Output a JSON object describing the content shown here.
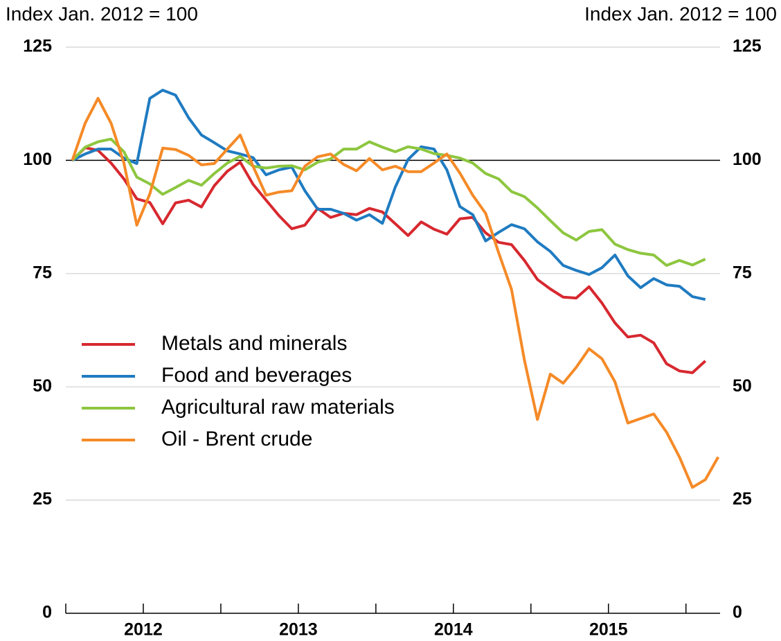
{
  "chart_data": {
    "type": "line",
    "y_label": "Index Jan. 2012 = 100",
    "y2_label": "Index Jan. 2012 = 100",
    "x": [
      2012.042,
      2012.125,
      2012.208,
      2012.292,
      2012.375,
      2012.458,
      2012.542,
      2012.625,
      2012.708,
      2012.792,
      2012.875,
      2012.958,
      2013.042,
      2013.125,
      2013.208,
      2013.292,
      2013.375,
      2013.458,
      2013.542,
      2013.625,
      2013.708,
      2013.792,
      2013.875,
      2013.958,
      2014.042,
      2014.125,
      2014.208,
      2014.292,
      2014.375,
      2014.458,
      2014.542,
      2014.625,
      2014.708,
      2014.792,
      2014.875,
      2014.958,
      2015.042,
      2015.125,
      2015.208,
      2015.292,
      2015.375,
      2015.458,
      2015.542,
      2015.625,
      2015.708,
      2015.792,
      2015.875,
      2015.958,
      2016.042,
      2016.125,
      2016.208
    ],
    "series": [
      {
        "name": "Metals and minerals",
        "color": "#d7282f",
        "values": [
          100,
          102.8,
          102.2,
          99.4,
          95.9,
          91.5,
          90.7,
          86.0,
          90.6,
          91.2,
          89.7,
          94.4,
          97.6,
          99.6,
          94.7,
          91.2,
          87.8,
          84.9,
          85.7,
          89.4,
          87.4,
          88.3,
          88.0,
          89.4,
          88.6,
          86.0,
          83.4,
          86.4,
          84.8,
          83.7,
          87.1,
          87.4,
          84.0,
          81.9,
          81.4,
          77.9,
          73.7,
          71.6,
          69.8,
          69.6,
          72.1,
          68.5,
          64.1,
          61.0,
          61.4,
          59.7,
          55.1,
          53.5,
          53.1,
          55.7,
          null
        ]
      },
      {
        "name": "Food and beverages",
        "color": "#1f7bc1",
        "values": [
          100,
          101.4,
          102.5,
          102.5,
          100.5,
          99.3,
          113.7,
          115.5,
          114.4,
          109.4,
          105.6,
          103.9,
          102.1,
          101.4,
          100.6,
          96.8,
          97.9,
          98.5,
          93.3,
          89.2,
          89.2,
          88.3,
          86.8,
          88.0,
          86.1,
          94.1,
          100.2,
          103.0,
          102.5,
          97.9,
          89.8,
          88.0,
          82.2,
          84.1,
          85.8,
          84.9,
          82.0,
          79.9,
          76.8,
          75.7,
          74.8,
          76.3,
          79.1,
          74.5,
          71.9,
          73.9,
          72.5,
          72.2,
          69.9,
          69.3,
          null
        ]
      },
      {
        "name": "Agricultural raw materials",
        "color": "#8dc63f",
        "values": [
          100,
          102.9,
          104.1,
          104.7,
          101.9,
          96.3,
          94.8,
          92.5,
          94.0,
          95.6,
          94.5,
          97.1,
          99.4,
          100.9,
          98.7,
          98.3,
          98.7,
          98.8,
          97.9,
          99.6,
          100.3,
          102.5,
          102.5,
          104.1,
          102.9,
          101.9,
          103.0,
          102.5,
          101.5,
          101.1,
          100.5,
          99.4,
          97.1,
          95.9,
          93.1,
          92.0,
          89.5,
          86.7,
          84.0,
          82.4,
          84.3,
          84.7,
          81.5,
          80.3,
          79.5,
          79.1,
          76.8,
          77.9,
          76.9,
          78.2,
          null
        ]
      },
      {
        "name": "Oil - Brent crude",
        "color": "#f58a27",
        "values": [
          100,
          108.2,
          113.7,
          108.2,
          99.4,
          85.7,
          92.6,
          102.7,
          102.4,
          101.1,
          99.0,
          99.3,
          102.5,
          105.6,
          98.7,
          92.3,
          93.0,
          93.3,
          98.7,
          100.8,
          101.4,
          99.1,
          97.7,
          100.4,
          97.9,
          98.7,
          97.5,
          97.5,
          99.4,
          101.4,
          97.2,
          92.3,
          88.3,
          79.6,
          71.5,
          55.9,
          42.8,
          52.8,
          50.8,
          54.3,
          58.4,
          56.2,
          51.1,
          42,
          43,
          44,
          40,
          34.5,
          27.8,
          29.5,
          34.5
        ]
      }
    ],
    "xlim": [
      2012,
      2016.22
    ],
    "xticks": [
      2012.5,
      2013,
      2013.5,
      2014,
      2014.5,
      2015,
      2015.5,
      2016
    ],
    "xlabels": [
      {
        "value": 2012.5,
        "label": "2012"
      },
      {
        "value": 2013.5,
        "label": "2013"
      },
      {
        "value": 2014.5,
        "label": "2014"
      },
      {
        "value": 2015.5,
        "label": "2015"
      }
    ],
    "ylim": [
      0,
      125
    ],
    "yticks": [
      0,
      25,
      50,
      75,
      100,
      125
    ],
    "y2lim": [
      0,
      125
    ],
    "y2ticks": [
      0,
      25,
      50,
      75,
      100,
      125
    ],
    "reference_line": 100,
    "grid": true
  }
}
